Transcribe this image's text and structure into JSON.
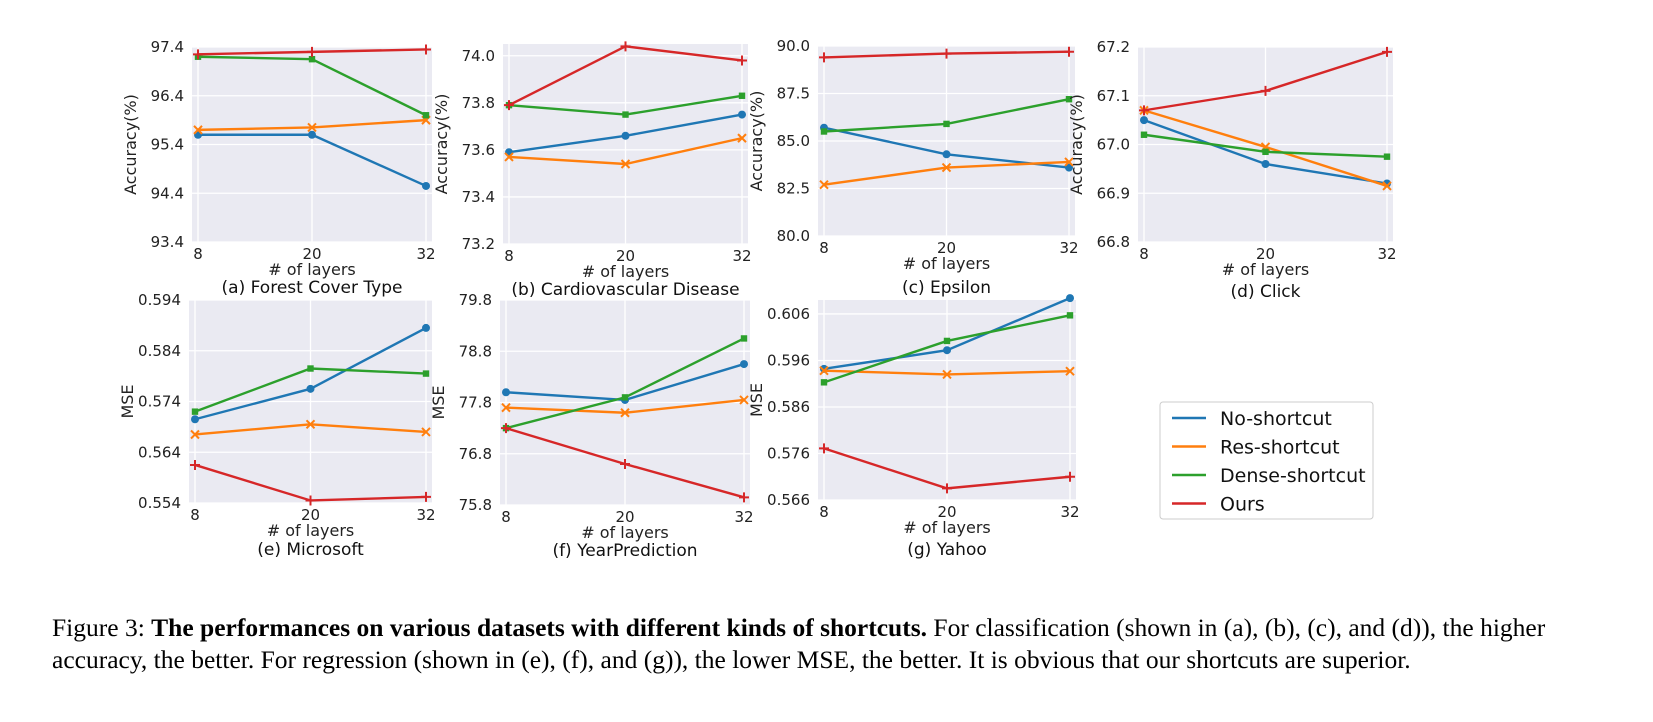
{
  "chart_data": [
    {
      "type": "line",
      "panel": "(a)",
      "subtitle": "Forest Cover Type",
      "xlabel": "# of layers",
      "ylabel": "Accuracy(%)",
      "x": [
        8,
        20,
        32
      ],
      "ylim": [
        93.4,
        97.4
      ],
      "yticks": [
        "93.4",
        "94.4",
        "95.4",
        "96.4",
        "97.4"
      ],
      "series": [
        {
          "name": "No-shortcut",
          "values": [
            95.6,
            95.6,
            94.55
          ]
        },
        {
          "name": "Res-shortcut",
          "values": [
            95.7,
            95.75,
            95.9
          ]
        },
        {
          "name": "Dense-shortcut",
          "values": [
            97.2,
            97.15,
            96.0
          ]
        },
        {
          "name": "Ours",
          "values": [
            97.25,
            97.3,
            97.35
          ]
        }
      ]
    },
    {
      "type": "line",
      "panel": "(b)",
      "subtitle": "Cardiovascular Disease",
      "xlabel": "# of layers",
      "ylabel": "Accuracy(%)",
      "x": [
        8,
        20,
        32
      ],
      "ylim": [
        73.2,
        74.05
      ],
      "yticks": [
        "73.2",
        "73.4",
        "73.6",
        "73.8",
        "74.0"
      ],
      "series": [
        {
          "name": "No-shortcut",
          "values": [
            73.59,
            73.66,
            73.75
          ]
        },
        {
          "name": "Res-shortcut",
          "values": [
            73.57,
            73.54,
            73.65
          ]
        },
        {
          "name": "Dense-shortcut",
          "values": [
            73.79,
            73.75,
            73.83
          ]
        },
        {
          "name": "Ours",
          "values": [
            73.79,
            74.04,
            73.98
          ]
        }
      ]
    },
    {
      "type": "line",
      "panel": "(c)",
      "subtitle": "Epsilon",
      "xlabel": "# of layers",
      "ylabel": "Accuracy(%)",
      "x": [
        8,
        20,
        32
      ],
      "ylim": [
        80.0,
        90.0
      ],
      "yticks": [
        "80.0",
        "82.5",
        "85.0",
        "87.5",
        "90.0"
      ],
      "series": [
        {
          "name": "No-shortcut",
          "values": [
            85.7,
            84.3,
            83.6
          ]
        },
        {
          "name": "Res-shortcut",
          "values": [
            82.7,
            83.6,
            83.9
          ]
        },
        {
          "name": "Dense-shortcut",
          "values": [
            85.5,
            85.9,
            87.2
          ]
        },
        {
          "name": "Ours",
          "values": [
            89.4,
            89.6,
            89.7
          ]
        }
      ]
    },
    {
      "type": "line",
      "panel": "(d)",
      "subtitle": "Click",
      "xlabel": "# of layers",
      "ylabel": "Accuracy(%)",
      "x": [
        8,
        20,
        32
      ],
      "ylim": [
        66.8,
        67.2
      ],
      "yticks": [
        "66.8",
        "66.9",
        "67.0",
        "67.1",
        "67.2"
      ],
      "series": [
        {
          "name": "No-shortcut",
          "values": [
            67.05,
            66.96,
            66.92
          ]
        },
        {
          "name": "Res-shortcut",
          "values": [
            67.07,
            66.995,
            66.915
          ]
        },
        {
          "name": "Dense-shortcut",
          "values": [
            67.02,
            66.985,
            66.975
          ]
        },
        {
          "name": "Ours",
          "values": [
            67.07,
            67.11,
            67.19
          ]
        }
      ]
    },
    {
      "type": "line",
      "panel": "(e)",
      "subtitle": "Microsoft",
      "xlabel": "# of layers",
      "ylabel": "MSE",
      "x": [
        8,
        20,
        32
      ],
      "ylim": [
        0.554,
        0.594
      ],
      "yticks": [
        "0.554",
        "0.564",
        "0.574",
        "0.584",
        "0.594"
      ],
      "series": [
        {
          "name": "No-shortcut",
          "values": [
            0.5705,
            0.5765,
            0.5885
          ]
        },
        {
          "name": "Res-shortcut",
          "values": [
            0.5675,
            0.5695,
            0.568
          ]
        },
        {
          "name": "Dense-shortcut",
          "values": [
            0.572,
            0.5805,
            0.5795
          ]
        },
        {
          "name": "Ours",
          "values": [
            0.5615,
            0.5545,
            0.5552
          ]
        }
      ]
    },
    {
      "type": "line",
      "panel": "(f)",
      "subtitle": "YearPrediction",
      "xlabel": "# of layers",
      "ylabel": "MSE",
      "x": [
        8,
        20,
        32
      ],
      "ylim": [
        75.8,
        79.8
      ],
      "yticks": [
        "75.8",
        "76.8",
        "77.8",
        "78.8",
        "79.8"
      ],
      "series": [
        {
          "name": "No-shortcut",
          "values": [
            78.0,
            77.85,
            78.55
          ]
        },
        {
          "name": "Res-shortcut",
          "values": [
            77.7,
            77.6,
            77.85
          ]
        },
        {
          "name": "Dense-shortcut",
          "values": [
            77.3,
            77.9,
            79.05
          ]
        },
        {
          "name": "Ours",
          "values": [
            77.3,
            76.6,
            75.95
          ]
        }
      ]
    },
    {
      "type": "line",
      "panel": "(g)",
      "subtitle": "Yahoo",
      "xlabel": "# of layers",
      "ylabel": "MSE",
      "x": [
        8,
        20,
        32
      ],
      "ylim": [
        0.566,
        0.609
      ],
      "yticks": [
        "0.566",
        "0.576",
        "0.586",
        "0.596",
        "0.606"
      ],
      "series": [
        {
          "name": "No-shortcut",
          "values": [
            0.5942,
            0.5982,
            0.6094
          ]
        },
        {
          "name": "Res-shortcut",
          "values": [
            0.5938,
            0.593,
            0.5937
          ]
        },
        {
          "name": "Dense-shortcut",
          "values": [
            0.5913,
            0.6002,
            0.6057
          ]
        },
        {
          "name": "Ours",
          "values": [
            0.5771,
            0.5685,
            0.571
          ]
        }
      ]
    }
  ],
  "legend": {
    "placement": "bottom-right",
    "entries": [
      {
        "name": "No-shortcut",
        "color": "#1f77b4"
      },
      {
        "name": "Res-shortcut",
        "color": "#ff7f0e"
      },
      {
        "name": "Dense-shortcut",
        "color": "#2ca02c"
      },
      {
        "name": "Ours",
        "color": "#d62728"
      }
    ]
  },
  "caption": {
    "prefix": "Figure 3: ",
    "bold": "The performances on various datasets with different kinds of shortcuts.",
    "rest": " For classification (shown in (a), (b), (c), and (d)), the higher accuracy, the better. For regression (shown in (e), (f), and (g)), the lower MSE, the better. It is obvious that our shortcuts are superior."
  }
}
